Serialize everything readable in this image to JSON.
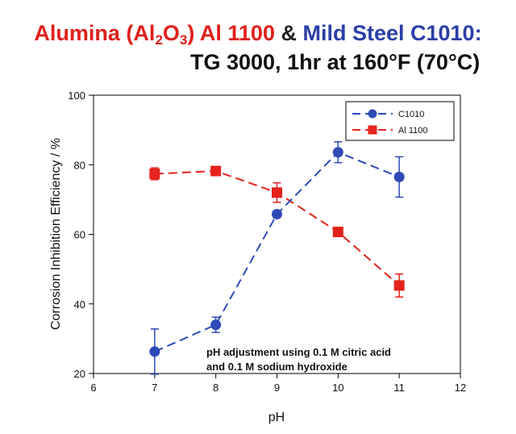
{
  "title": {
    "part1": "Alumina (Al",
    "sub1": "2",
    "part2": "O",
    "sub2": "3",
    "part3": ") Al 1100",
    "amp": " & ",
    "part4": "Mild Steel C1010:",
    "line2": "TG 3000, 1hr at 160°F (70°C)"
  },
  "colors": {
    "red": "#e0201b",
    "blue": "#2b3fa6",
    "c1010": "#2f4ab8",
    "al1100": "#e5231c"
  },
  "chart_data": {
    "type": "line",
    "xlabel": "pH",
    "ylabel": "Corrosion Inhibition Efficiency / %",
    "xlim": [
      6,
      12
    ],
    "ylim": [
      20,
      100
    ],
    "xticks": [
      6,
      7,
      8,
      9,
      10,
      11,
      12
    ],
    "yticks": [
      20,
      40,
      60,
      80,
      100
    ],
    "grid": false,
    "legend_position": "top-right",
    "annotation": [
      "pH adjustment using 0.1 M citric acid",
      "and 0.1 M sodium hydroxide"
    ],
    "series": [
      {
        "name": "C1010",
        "marker": "circle",
        "line_style": "dashed",
        "x": [
          7,
          8,
          9,
          10,
          11
        ],
        "y": [
          26.3,
          34.0,
          65.8,
          83.6,
          76.5
        ],
        "err": [
          6.5,
          2.2,
          0.8,
          3.0,
          5.8
        ]
      },
      {
        "name": "Al 1100",
        "marker": "square",
        "line_style": "dashed",
        "x": [
          7,
          8,
          9,
          10,
          11
        ],
        "y": [
          77.4,
          78.2,
          72.0,
          60.7,
          45.3
        ],
        "err": [
          1.7,
          0.9,
          2.8,
          0.8,
          3.3
        ]
      }
    ]
  }
}
